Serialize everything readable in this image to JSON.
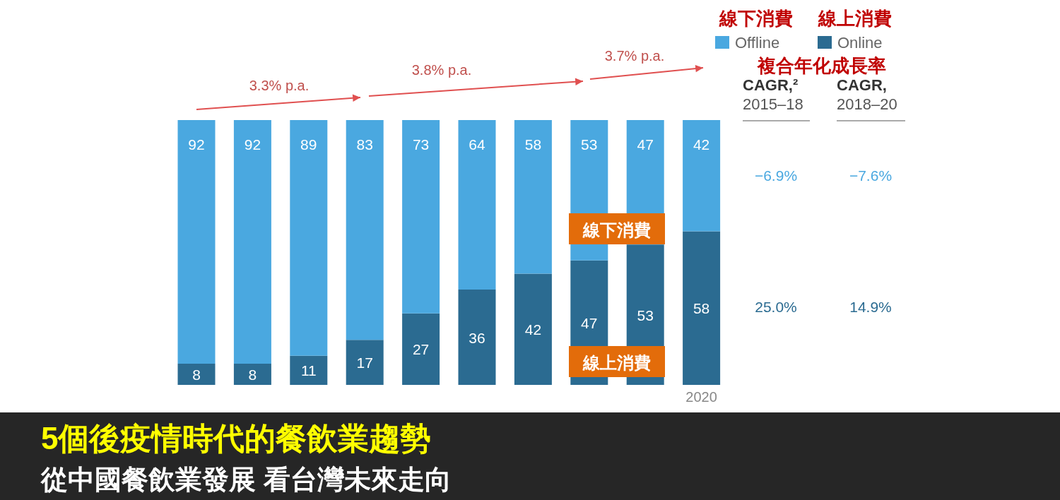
{
  "chart_data": {
    "type": "bar",
    "stacked": true,
    "legend": "top right",
    "title": "5個後疫情時代的餐飲業趨勢",
    "subtitle": "從中國餐飲業發展 看台灣未來走向",
    "categories": [
      null,
      null,
      null,
      null,
      null,
      null,
      null,
      null,
      null,
      "2020"
    ],
    "series": [
      {
        "name": "Online",
        "color": "#2b6b91",
        "values": [
          8,
          8,
          11,
          17,
          27,
          36,
          42,
          47,
          53,
          58
        ],
        "value_labels": [
          "8",
          "8",
          "11",
          "17",
          "27",
          "36",
          "42",
          "47",
          "53",
          "58"
        ]
      },
      {
        "name": "Offline",
        "color": "#4aa8e0",
        "values": [
          92,
          92,
          89,
          83,
          73,
          64,
          58,
          53,
          47,
          42
        ],
        "value_labels": [
          "92",
          "92",
          "89",
          "83",
          "73",
          "64",
          "58",
          "53",
          "47",
          "42"
        ]
      }
    ],
    "annotations": [
      "3.3% p.a.",
      "3.8% p.a.",
      "3.7% p.a.",
      "線下消費",
      "線上消費",
      "複合年化成長率",
      "CAGR,²",
      "2015–18",
      "CAGR,",
      "2018–20",
      "−6.9%",
      "−7.6%",
      "25.0%",
      "14.9%",
      "線下消費",
      "線上消費"
    ]
  }
}
